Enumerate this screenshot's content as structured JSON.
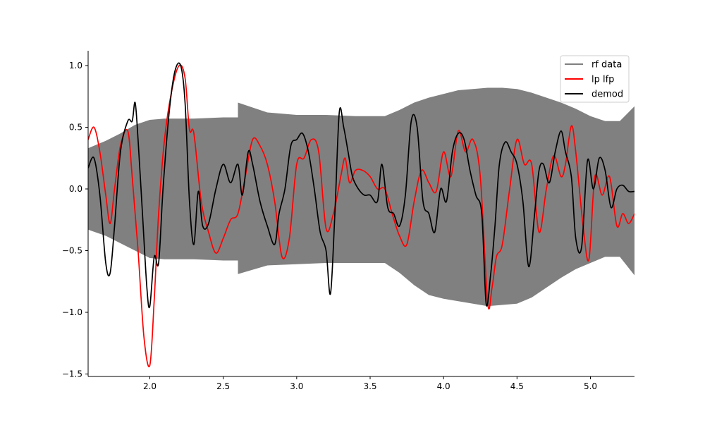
{
  "chart_data": {
    "type": "line",
    "title": "",
    "xlabel": "",
    "ylabel": "",
    "xlim": [
      1.58,
      5.3
    ],
    "ylim": [
      -1.52,
      1.12
    ],
    "xticks": [
      2.0,
      2.5,
      3.0,
      3.5,
      4.0,
      4.5,
      5.0
    ],
    "xtick_labels": [
      "2.0",
      "2.5",
      "3.0",
      "3.5",
      "4.0",
      "4.5",
      "5.0"
    ],
    "yticks": [
      -1.5,
      -1.0,
      -0.5,
      0.0,
      0.5,
      1.0
    ],
    "ytick_labels": [
      "−1.5",
      "−1.0",
      "−0.5",
      "0.0",
      "0.5",
      "1.0"
    ],
    "grid": false,
    "legend_position": "top-right",
    "legend": [
      "rf data",
      "lp lfp",
      "demod"
    ],
    "series": [
      {
        "name": "rf data",
        "style": "envelope",
        "color": "#808080",
        "x": [
          1.58,
          1.7,
          1.8,
          1.9,
          2.0,
          2.1,
          2.3,
          2.5,
          2.6,
          2.6,
          2.8,
          3.0,
          3.2,
          3.4,
          3.5,
          3.6,
          3.7,
          3.8,
          3.9,
          4.0,
          4.1,
          4.2,
          4.3,
          4.4,
          4.5,
          4.6,
          4.7,
          4.8,
          4.9,
          5.0,
          5.1,
          5.2,
          5.3
        ],
        "upper": [
          0.33,
          0.39,
          0.45,
          0.52,
          0.56,
          0.57,
          0.57,
          0.58,
          0.58,
          0.7,
          0.62,
          0.6,
          0.6,
          0.59,
          0.59,
          0.59,
          0.64,
          0.7,
          0.74,
          0.77,
          0.8,
          0.81,
          0.82,
          0.82,
          0.81,
          0.78,
          0.74,
          0.7,
          0.65,
          0.59,
          0.55,
          0.55,
          0.67
        ],
        "lower": [
          -0.33,
          -0.38,
          -0.44,
          -0.5,
          -0.56,
          -0.57,
          -0.57,
          -0.58,
          -0.58,
          -0.69,
          -0.62,
          -0.61,
          -0.6,
          -0.6,
          -0.6,
          -0.6,
          -0.68,
          -0.78,
          -0.86,
          -0.89,
          -0.91,
          -0.93,
          -0.95,
          -0.94,
          -0.93,
          -0.88,
          -0.8,
          -0.72,
          -0.65,
          -0.6,
          -0.55,
          -0.55,
          -0.7
        ]
      },
      {
        "name": "lp lfp",
        "color": "#ff0000",
        "x": [
          1.58,
          1.62,
          1.66,
          1.7,
          1.73,
          1.76,
          1.8,
          1.85,
          1.88,
          1.92,
          1.96,
          2.0,
          2.03,
          2.06,
          2.1,
          2.15,
          2.2,
          2.24,
          2.27,
          2.3,
          2.35,
          2.4,
          2.45,
          2.5,
          2.55,
          2.6,
          2.65,
          2.7,
          2.75,
          2.8,
          2.85,
          2.9,
          2.95,
          3.0,
          3.05,
          3.1,
          3.15,
          3.2,
          3.25,
          3.3,
          3.33,
          3.36,
          3.4,
          3.45,
          3.5,
          3.55,
          3.6,
          3.65,
          3.7,
          3.75,
          3.8,
          3.85,
          3.9,
          3.95,
          4.0,
          4.05,
          4.1,
          4.15,
          4.2,
          4.25,
          4.3,
          4.33,
          4.36,
          4.4,
          4.45,
          4.5,
          4.55,
          4.6,
          4.65,
          4.7,
          4.75,
          4.8,
          4.83,
          4.87,
          4.9,
          4.95,
          4.99,
          5.03,
          5.08,
          5.13,
          5.18,
          5.22,
          5.26,
          5.3
        ],
        "y": [
          0.4,
          0.5,
          0.3,
          -0.05,
          -0.28,
          0.0,
          0.35,
          0.47,
          0.1,
          -0.5,
          -1.2,
          -1.43,
          -0.9,
          -0.2,
          0.4,
          0.8,
          1.0,
          0.9,
          0.48,
          0.45,
          -0.1,
          -0.35,
          -0.52,
          -0.4,
          -0.25,
          -0.2,
          0.1,
          0.4,
          0.35,
          0.2,
          -0.1,
          -0.55,
          -0.4,
          0.2,
          0.25,
          0.4,
          0.3,
          -0.32,
          -0.2,
          0.1,
          0.25,
          0.05,
          0.15,
          0.15,
          0.1,
          0.0,
          0.0,
          -0.2,
          -0.38,
          -0.45,
          -0.1,
          0.15,
          0.05,
          -0.02,
          0.3,
          0.1,
          0.47,
          0.3,
          0.4,
          0.1,
          -0.92,
          -0.8,
          -0.55,
          -0.45,
          0.0,
          0.4,
          0.2,
          0.2,
          -0.35,
          0.0,
          0.27,
          0.1,
          0.2,
          0.51,
          0.3,
          -0.3,
          -0.57,
          0.1,
          -0.05,
          0.1,
          -0.3,
          -0.2,
          -0.28,
          -0.2
        ]
      },
      {
        "name": "demod",
        "color": "#000000",
        "x": [
          1.58,
          1.62,
          1.66,
          1.7,
          1.73,
          1.76,
          1.8,
          1.85,
          1.88,
          1.9,
          1.92,
          1.95,
          1.98,
          2.0,
          2.03,
          2.06,
          2.09,
          2.13,
          2.17,
          2.21,
          2.24,
          2.27,
          2.3,
          2.33,
          2.36,
          2.4,
          2.45,
          2.5,
          2.55,
          2.6,
          2.63,
          2.67,
          2.7,
          2.75,
          2.8,
          2.85,
          2.88,
          2.92,
          2.96,
          3.0,
          3.04,
          3.08,
          3.12,
          3.16,
          3.2,
          3.23,
          3.26,
          3.29,
          3.32,
          3.35,
          3.38,
          3.42,
          3.46,
          3.5,
          3.55,
          3.58,
          3.62,
          3.66,
          3.7,
          3.74,
          3.78,
          3.82,
          3.86,
          3.9,
          3.94,
          3.98,
          4.02,
          4.06,
          4.1,
          4.14,
          4.18,
          4.22,
          4.26,
          4.29,
          4.32,
          4.35,
          4.38,
          4.42,
          4.46,
          4.5,
          4.54,
          4.58,
          4.62,
          4.65,
          4.68,
          4.72,
          4.76,
          4.8,
          4.83,
          4.87,
          4.9,
          4.94,
          4.98,
          5.02,
          5.06,
          5.1,
          5.14,
          5.18,
          5.22,
          5.26,
          5.3
        ],
        "y": [
          0.17,
          0.25,
          -0.05,
          -0.6,
          -0.68,
          -0.3,
          0.3,
          0.55,
          0.55,
          0.7,
          0.4,
          -0.2,
          -0.8,
          -0.95,
          -0.55,
          -0.6,
          0.0,
          0.6,
          0.95,
          1.0,
          0.7,
          -0.1,
          -0.45,
          -0.02,
          -0.3,
          -0.28,
          0.0,
          0.2,
          0.05,
          0.2,
          -0.05,
          0.3,
          0.2,
          -0.1,
          -0.3,
          -0.45,
          -0.2,
          0.0,
          0.35,
          0.4,
          0.45,
          0.3,
          0.0,
          -0.35,
          -0.5,
          -0.85,
          -0.2,
          0.62,
          0.5,
          0.3,
          0.1,
          0.0,
          -0.05,
          -0.05,
          -0.1,
          0.2,
          -0.15,
          -0.2,
          -0.3,
          -0.05,
          0.55,
          0.5,
          -0.1,
          -0.2,
          -0.35,
          0.0,
          -0.1,
          0.3,
          0.45,
          0.4,
          0.15,
          -0.05,
          -0.2,
          -0.93,
          -0.7,
          -0.3,
          0.2,
          0.38,
          0.3,
          0.2,
          -0.1,
          -0.63,
          -0.2,
          0.15,
          0.2,
          0.05,
          0.3,
          0.47,
          0.3,
          0.1,
          -0.4,
          -0.47,
          0.23,
          0.0,
          0.25,
          0.15,
          -0.15,
          0.0,
          0.03,
          -0.02,
          -0.02
        ]
      }
    ]
  }
}
